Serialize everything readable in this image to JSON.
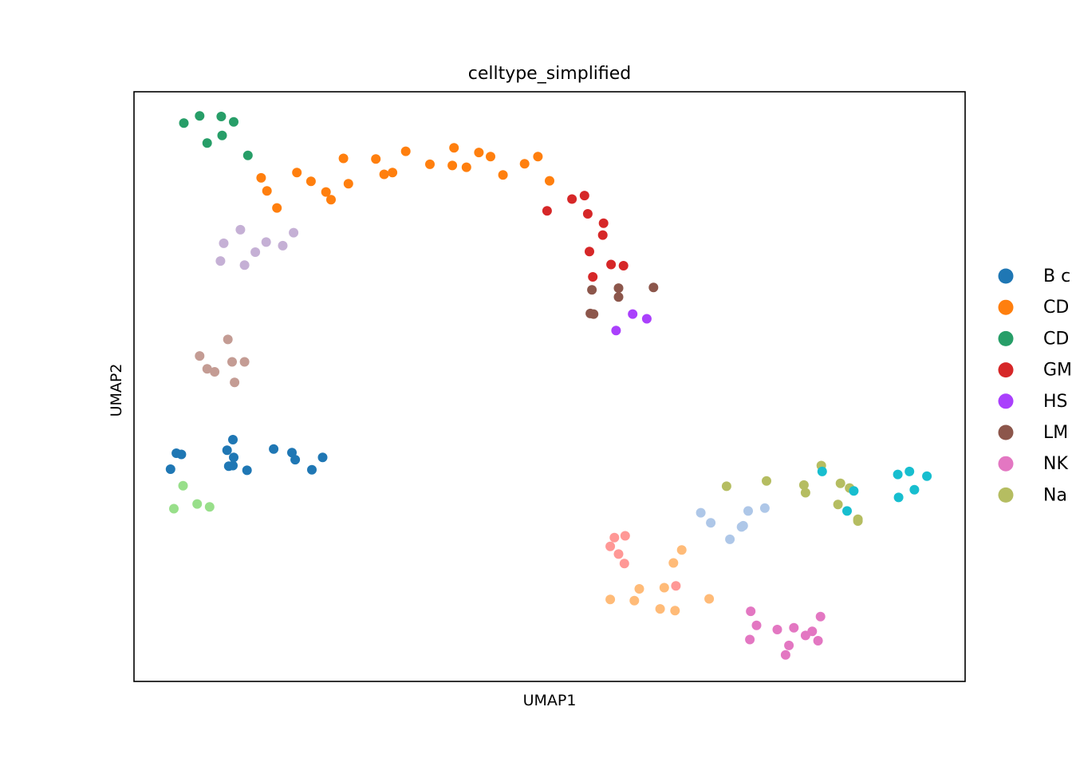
{
  "chart_data": {
    "type": "scatter",
    "title": "celltype_simplified",
    "xlabel": "UMAP1",
    "ylabel": "UMAP2",
    "xlim": [
      0,
      100
    ],
    "ylim": [
      0,
      100
    ],
    "grid": false,
    "ticks": false,
    "legend_position": "right (clipped)",
    "legend": [
      {
        "label": "B c",
        "color": "#1f77b4"
      },
      {
        "label": "CD",
        "color": "#ff7f0e"
      },
      {
        "label": "CD",
        "color": "#279e68"
      },
      {
        "label": "GM",
        "color": "#d62728"
      },
      {
        "label": "HS",
        "color": "#aa40fc"
      },
      {
        "label": "LM",
        "color": "#8c564b"
      },
      {
        "label": "NK",
        "color": "#e377c2"
      },
      {
        "label": "Na",
        "color": "#b5bd61"
      }
    ],
    "series": [
      {
        "color": "#1f77b4",
        "points": [
          [
            4.4,
            36.0
          ],
          [
            5.1,
            38.7
          ],
          [
            5.7,
            38.5
          ],
          [
            11.2,
            39.2
          ],
          [
            11.9,
            41.0
          ],
          [
            12.0,
            38.0
          ],
          [
            11.4,
            36.5
          ],
          [
            11.9,
            36.6
          ],
          [
            13.6,
            35.8
          ],
          [
            16.8,
            39.4
          ],
          [
            19.0,
            38.8
          ],
          [
            19.4,
            37.6
          ],
          [
            21.4,
            35.9
          ],
          [
            22.7,
            38.0
          ]
        ]
      },
      {
        "color": "#ff7f0e",
        "points": [
          [
            15.3,
            85.4
          ],
          [
            16.0,
            83.2
          ],
          [
            17.2,
            80.3
          ],
          [
            19.6,
            86.3
          ],
          [
            21.3,
            84.8
          ],
          [
            23.1,
            83.0
          ],
          [
            23.7,
            81.7
          ],
          [
            25.2,
            88.7
          ],
          [
            25.8,
            84.4
          ],
          [
            29.1,
            88.6
          ],
          [
            30.1,
            86.0
          ],
          [
            31.1,
            86.3
          ],
          [
            32.7,
            89.9
          ],
          [
            35.6,
            87.7
          ],
          [
            38.3,
            87.5
          ],
          [
            38.5,
            90.5
          ],
          [
            40.0,
            87.2
          ],
          [
            41.5,
            89.7
          ],
          [
            42.9,
            89.0
          ],
          [
            44.4,
            85.9
          ],
          [
            47.0,
            87.8
          ],
          [
            48.6,
            89.0
          ],
          [
            50.0,
            84.9
          ]
        ]
      },
      {
        "color": "#279e68",
        "points": [
          [
            6.0,
            94.7
          ],
          [
            7.9,
            95.9
          ],
          [
            8.8,
            91.3
          ],
          [
            10.5,
            95.8
          ],
          [
            10.6,
            92.6
          ],
          [
            12.0,
            94.9
          ],
          [
            13.7,
            89.2
          ]
        ]
      },
      {
        "color": "#d62728",
        "points": [
          [
            49.7,
            79.8
          ],
          [
            52.7,
            81.8
          ],
          [
            54.2,
            82.4
          ],
          [
            54.6,
            79.3
          ],
          [
            56.4,
            75.7
          ],
          [
            56.5,
            77.7
          ],
          [
            54.8,
            72.9
          ],
          [
            55.2,
            68.6
          ],
          [
            57.4,
            70.7
          ],
          [
            58.9,
            70.5
          ]
        ]
      },
      {
        "color": "#aa40fc",
        "points": [
          [
            58.0,
            59.5
          ],
          [
            60.0,
            62.3
          ],
          [
            61.7,
            61.5
          ]
        ]
      },
      {
        "color": "#8c564b",
        "points": [
          [
            55.1,
            66.4
          ],
          [
            54.9,
            62.4
          ],
          [
            55.3,
            62.3
          ],
          [
            58.3,
            66.7
          ],
          [
            58.3,
            65.2
          ],
          [
            62.5,
            66.8
          ]
        ]
      },
      {
        "color": "#e377c2",
        "points": [
          [
            74.2,
            11.9
          ],
          [
            74.9,
            9.5
          ],
          [
            74.1,
            7.1
          ],
          [
            77.4,
            8.8
          ],
          [
            78.4,
            4.5
          ],
          [
            78.8,
            6.1
          ],
          [
            79.4,
            9.1
          ],
          [
            80.8,
            7.8
          ],
          [
            81.6,
            8.5
          ],
          [
            82.3,
            6.9
          ],
          [
            82.6,
            11.0
          ]
        ]
      },
      {
        "color": "#b5bd61",
        "points": [
          [
            71.3,
            33.1
          ],
          [
            76.1,
            34.0
          ],
          [
            80.6,
            33.3
          ],
          [
            80.8,
            32.0
          ],
          [
            82.7,
            36.6
          ],
          [
            85.0,
            33.6
          ],
          [
            84.7,
            30.0
          ],
          [
            86.1,
            32.8
          ],
          [
            87.1,
            27.5
          ],
          [
            87.1,
            27.2
          ]
        ]
      },
      {
        "color": "#17becf",
        "points": [
          [
            82.8,
            35.6
          ],
          [
            86.6,
            32.3
          ],
          [
            85.8,
            28.9
          ],
          [
            91.9,
            35.1
          ],
          [
            93.3,
            35.6
          ],
          [
            92.0,
            31.2
          ],
          [
            93.9,
            32.5
          ],
          [
            95.4,
            34.8
          ]
        ]
      },
      {
        "color": "#aec7e8",
        "points": [
          [
            68.2,
            28.6
          ],
          [
            69.4,
            26.9
          ],
          [
            73.1,
            26.2
          ],
          [
            71.7,
            24.1
          ],
          [
            73.9,
            28.9
          ],
          [
            73.3,
            26.4
          ],
          [
            75.9,
            29.4
          ]
        ]
      },
      {
        "color": "#ffbb78",
        "points": [
          [
            57.3,
            13.9
          ],
          [
            60.2,
            13.7
          ],
          [
            60.8,
            15.7
          ],
          [
            63.3,
            12.3
          ],
          [
            63.8,
            15.9
          ],
          [
            65.1,
            12.0
          ],
          [
            64.9,
            20.1
          ],
          [
            65.9,
            22.3
          ],
          [
            69.2,
            14.0
          ]
        ]
      },
      {
        "color": "#ff9896",
        "points": [
          [
            57.3,
            22.9
          ],
          [
            57.8,
            24.4
          ],
          [
            58.3,
            21.6
          ],
          [
            59.0,
            20.0
          ],
          [
            59.1,
            24.7
          ],
          [
            65.2,
            16.2
          ]
        ]
      },
      {
        "color": "#98df8a",
        "points": [
          [
            5.9,
            33.2
          ],
          [
            4.8,
            29.3
          ],
          [
            7.6,
            30.1
          ],
          [
            9.1,
            29.6
          ]
        ]
      },
      {
        "color": "#c5b0d5",
        "points": [
          [
            10.4,
            71.3
          ],
          [
            10.8,
            74.3
          ],
          [
            12.8,
            76.6
          ],
          [
            13.3,
            70.6
          ],
          [
            14.6,
            72.8
          ],
          [
            15.9,
            74.5
          ],
          [
            17.9,
            73.9
          ],
          [
            19.2,
            76.1
          ]
        ]
      },
      {
        "color": "#c49c94",
        "points": [
          [
            7.9,
            55.2
          ],
          [
            8.8,
            53.0
          ],
          [
            9.7,
            52.5
          ],
          [
            11.3,
            58.0
          ],
          [
            11.8,
            54.2
          ],
          [
            12.1,
            50.7
          ],
          [
            13.3,
            54.2
          ]
        ]
      }
    ]
  }
}
